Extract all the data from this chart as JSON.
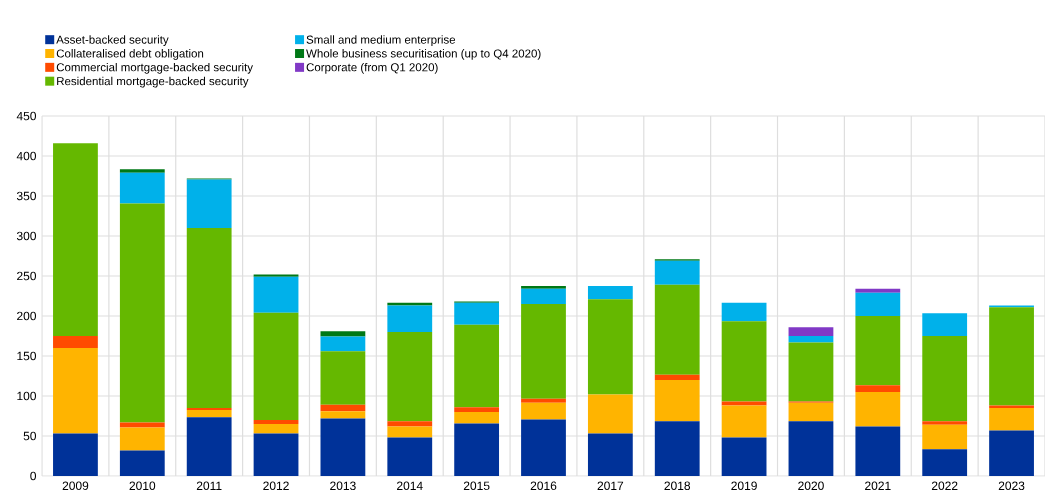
{
  "chart_data": {
    "type": "bar",
    "stacked": true,
    "categories": [
      "2009",
      "2010",
      "2011",
      "2012",
      "2013",
      "2014",
      "2015",
      "2016",
      "2017",
      "2018",
      "2019",
      "2020",
      "2021",
      "2022",
      "2023"
    ],
    "series": [
      {
        "name": "Asset-backed security",
        "color": "#003299",
        "values": [
          53,
          32,
          73.5,
          53,
          72,
          48,
          65.5,
          70.5,
          53,
          68.5,
          48,
          68.5,
          62,
          33.5,
          57
        ]
      },
      {
        "name": "Collateralised debt obligation",
        "color": "#ffb400",
        "values": [
          107,
          28.5,
          9,
          12,
          9,
          14,
          14.5,
          21,
          49,
          51.5,
          40,
          23,
          43,
          30.5,
          28
        ]
      },
      {
        "name": "Commercial mortgage-backed security",
        "color": "#ff4b00",
        "values": [
          15,
          6.5,
          2.5,
          5,
          8,
          6.5,
          6,
          5,
          null,
          6.5,
          5,
          1.5,
          8.5,
          4.5,
          3
        ]
      },
      {
        "name": "Residential mortgage-backed security",
        "color": "#65b800",
        "values": [
          241,
          273.5,
          225,
          134,
          67,
          111.5,
          103,
          118.5,
          119,
          112.5,
          100.5,
          74,
          86.5,
          106.5,
          123
        ]
      },
      {
        "name": "Small and medium enterprise",
        "color": "#00b1ea",
        "values": [
          null,
          38.5,
          60.5,
          45,
          18.5,
          33,
          27.5,
          19,
          16.5,
          30,
          23,
          8,
          29,
          28.5,
          2
        ]
      },
      {
        "name": "Whole business securitisation (up to Q4 2020)",
        "color": "#007816",
        "values": [
          null,
          4.5,
          1.5,
          3,
          6.5,
          3.5,
          1.5,
          3.5,
          null,
          2,
          null,
          null,
          null,
          null,
          null
        ]
      },
      {
        "name": "Corporate (from Q1 2020)",
        "color": "#8139c6",
        "values": [
          null,
          null,
          null,
          null,
          null,
          null,
          null,
          null,
          null,
          null,
          null,
          11,
          5,
          null,
          null
        ]
      }
    ],
    "ylim": [
      0,
      450
    ],
    "yticks": [
      0,
      50,
      100,
      150,
      200,
      250,
      300,
      350,
      400,
      450
    ],
    "grid": true,
    "legend": "top left"
  }
}
